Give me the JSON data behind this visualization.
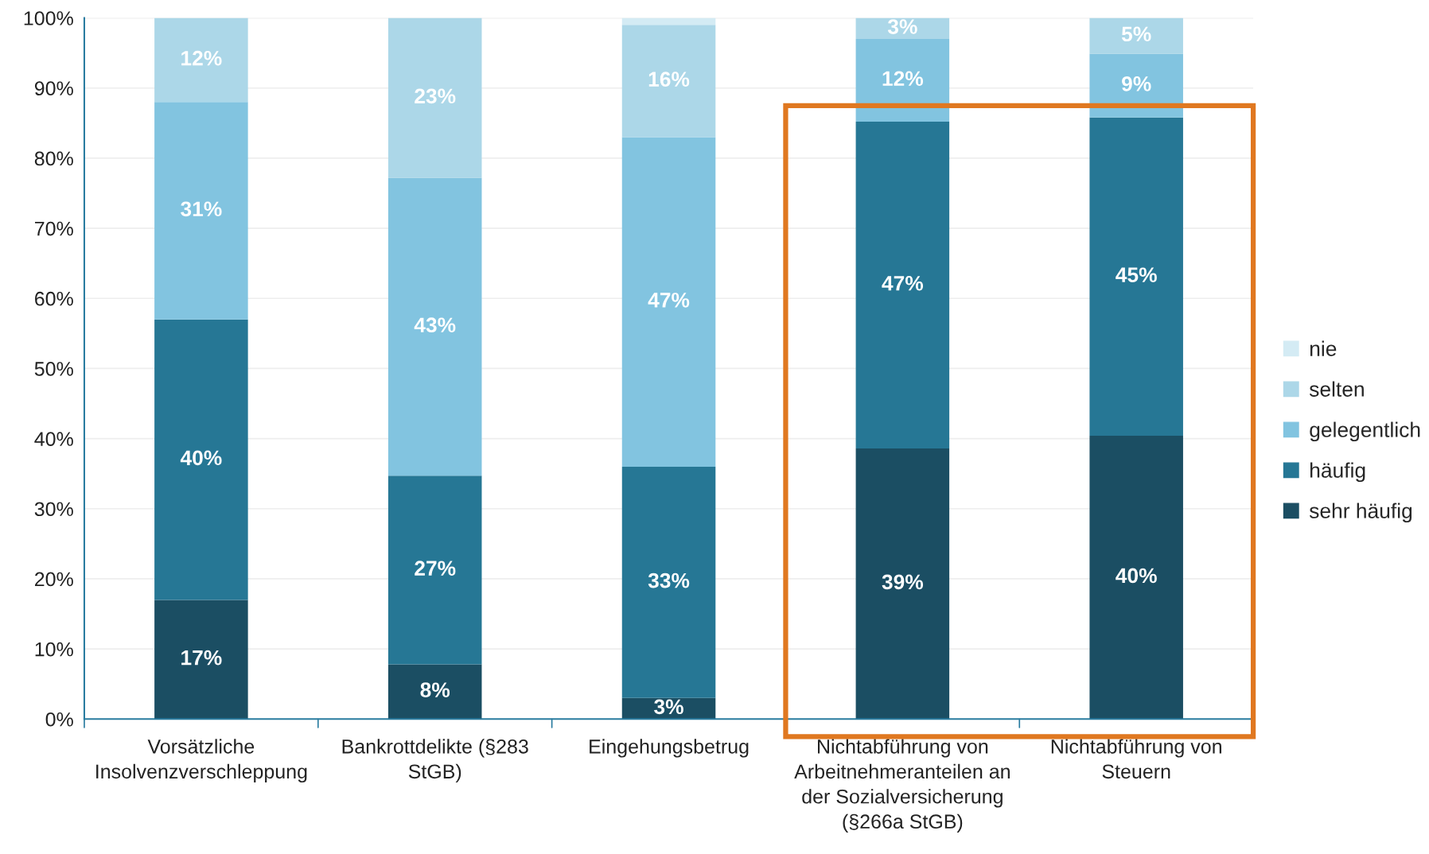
{
  "chart_data": {
    "type": "bar",
    "stacked": true,
    "categories": [
      "Vorsätzliche\nInsolvenzverschleppung",
      "Bankrottdelikte (§283\nStGB)",
      "Eingehungsbetrug",
      "Nichtabführung von\nArbeitnehmeranteilen an\nder Sozialversicherung\n(§266a StGB)",
      "Nichtabführung von\nSteuern"
    ],
    "series": [
      {
        "name": "sehr häufig",
        "color": "#1b4e63",
        "values": [
          17,
          7.8,
          3,
          38.6,
          40.4
        ],
        "value_labels": [
          "17%",
          "8%",
          "3%",
          "39%",
          "40%"
        ]
      },
      {
        "name": "häufig",
        "color": "#267795",
        "values": [
          40,
          26.9,
          33,
          46.6,
          45.4
        ],
        "value_labels": [
          "40%",
          "27%",
          "33%",
          "47%",
          "45%"
        ]
      },
      {
        "name": "gelegentlich",
        "color": "#82c4e0",
        "values": [
          31,
          42.5,
          47,
          11.8,
          9.1
        ],
        "value_labels": [
          "31%",
          "43%",
          "47%",
          "12%",
          "9%"
        ]
      },
      {
        "name": "selten",
        "color": "#acd7e8",
        "values": [
          12,
          22.8,
          16,
          3,
          5.1
        ],
        "value_labels": [
          "12%",
          "23%",
          "16%",
          "3%",
          "5%"
        ]
      },
      {
        "name": "nie",
        "color": "#d4ebf4",
        "values": [
          0,
          0,
          1,
          0,
          0
        ],
        "value_labels": [
          null,
          null,
          null,
          null,
          null
        ]
      }
    ],
    "ylim": [
      0,
      100
    ],
    "yticks": [
      {
        "value": 0,
        "label": "0%"
      },
      {
        "value": 10,
        "label": "10%"
      },
      {
        "value": 20,
        "label": "20%"
      },
      {
        "value": 30,
        "label": "30%"
      },
      {
        "value": 40,
        "label": "40%"
      },
      {
        "value": 50,
        "label": "50%"
      },
      {
        "value": 60,
        "label": "60%"
      },
      {
        "value": 70,
        "label": "70%"
      },
      {
        "value": 80,
        "label": "80%"
      },
      {
        "value": 90,
        "label": "90%"
      },
      {
        "value": 100,
        "label": "100%"
      }
    ],
    "grid": "y",
    "legend": "right"
  }
}
